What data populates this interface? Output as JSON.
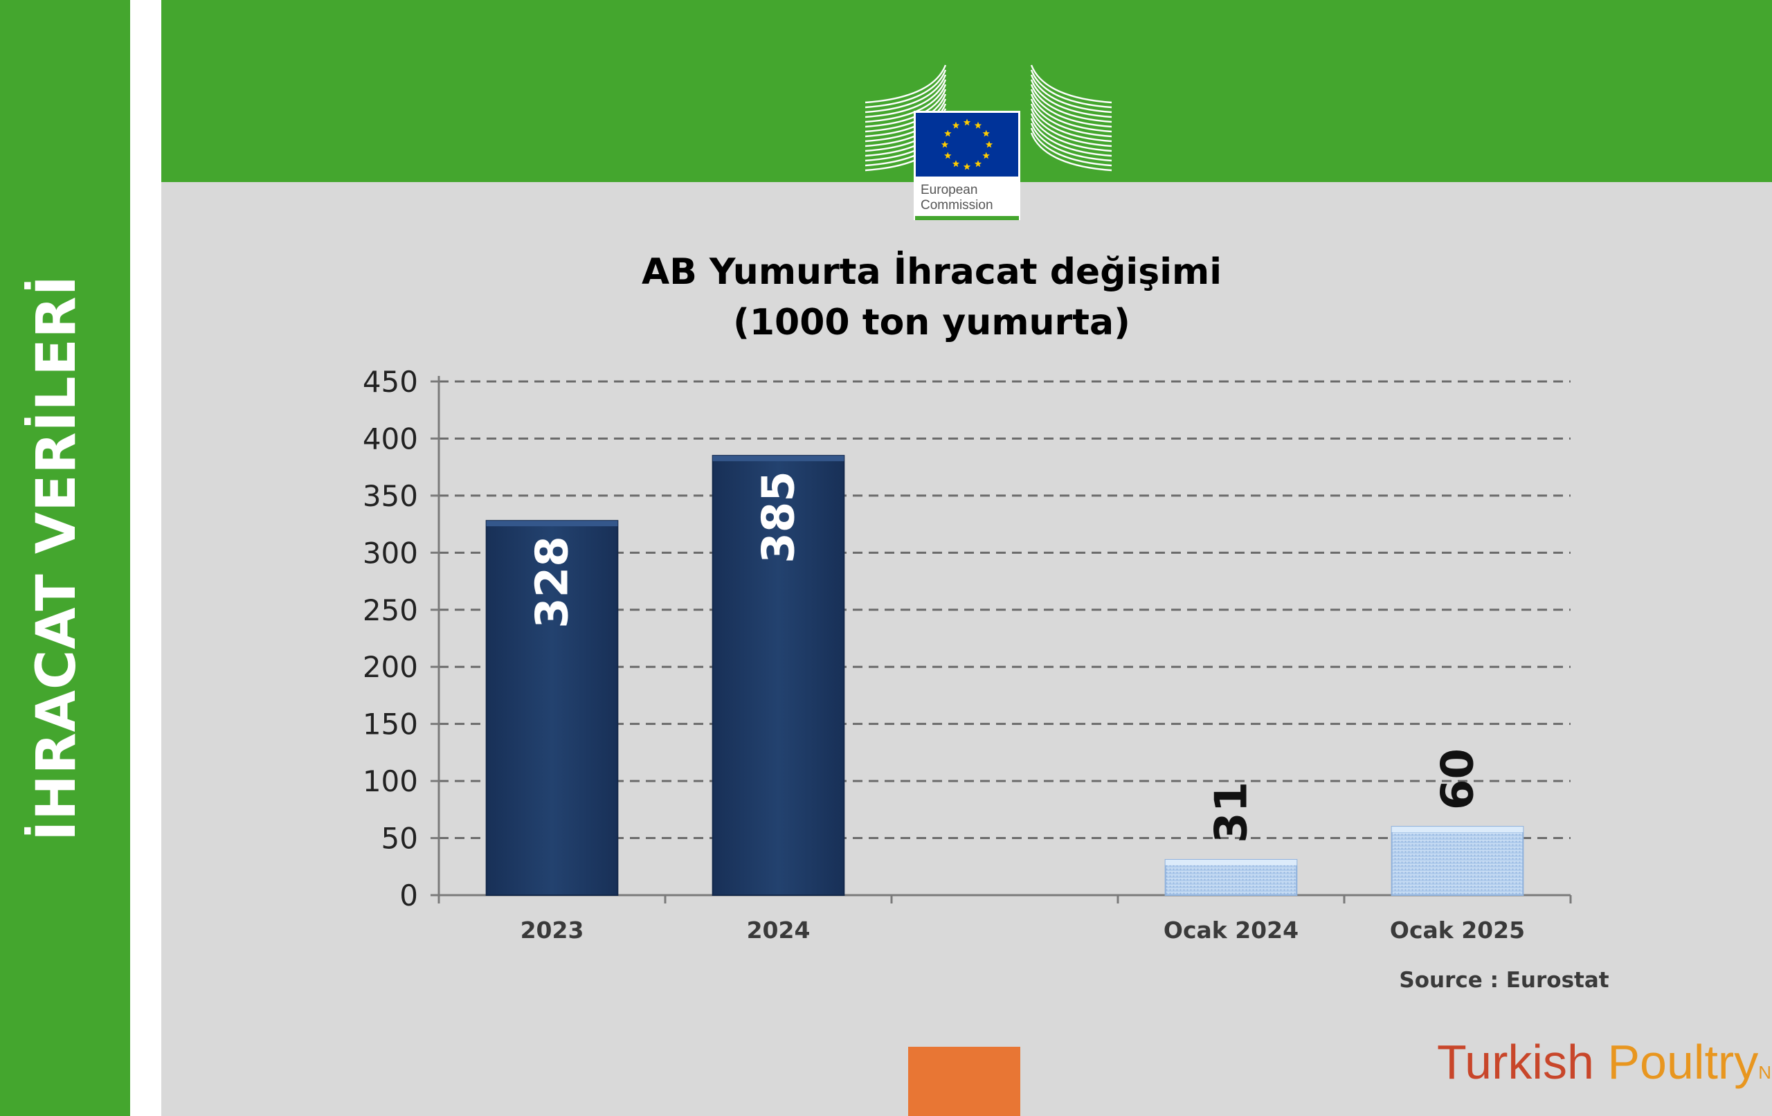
{
  "sidebar": {
    "title": "İHRACAT VERİLERİ"
  },
  "logo": {
    "line1": "European",
    "line2": "Commission",
    "icon": "eu-flag-icon"
  },
  "chart_data": {
    "type": "bar",
    "title_line1": "AB Yumurta İhracat değişimi",
    "title_line2": "(1000 ton yumurta)",
    "xlabel": "",
    "ylabel": "",
    "ylim": [
      0,
      450
    ],
    "yticks": [
      0,
      50,
      100,
      150,
      200,
      250,
      300,
      350,
      400,
      450
    ],
    "ytick_labels": [
      "0",
      "50",
      "100",
      "150",
      "200",
      "250",
      "300",
      "350",
      "400",
      "450"
    ],
    "grid": "horizontal-dashed",
    "categories": [
      "2023",
      "2024",
      "",
      "Ocak 2024",
      "Ocak 2025"
    ],
    "values": [
      328,
      385,
      null,
      31,
      60
    ],
    "value_labels": [
      "328",
      "385",
      "",
      "31",
      "60"
    ],
    "bar_colors": [
      "#1e3a66",
      "#1e3a66",
      "",
      "#b9d3ef",
      "#b9d3ef"
    ],
    "source": "Source : Eurostat"
  },
  "brand": {
    "part1": "Turkish ",
    "part2": "Poultry",
    "part3": "Net"
  },
  "colors": {
    "green": "#44a62e",
    "navy": "#1e3a66",
    "light_blue": "#b9d3ef",
    "orange": "#e87634"
  }
}
